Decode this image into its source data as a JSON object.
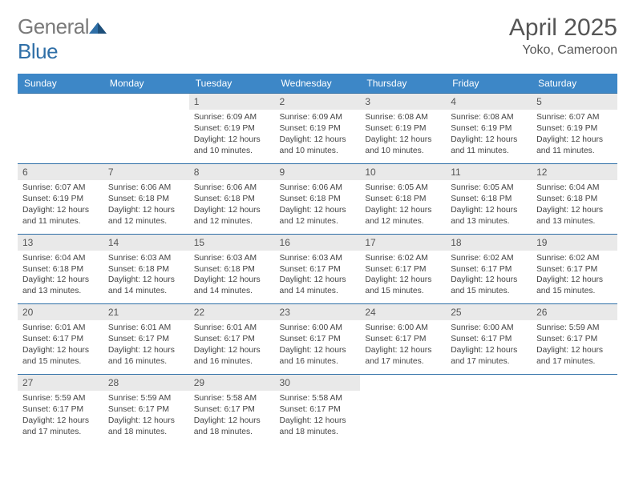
{
  "logo": {
    "text1": "General",
    "text2": "Blue"
  },
  "title": "April 2025",
  "location": "Yoko, Cameroon",
  "colors": {
    "header_bg": "#3d87c7",
    "header_text": "#ffffff",
    "daynum_bg": "#e9e9e9",
    "rule": "#2f6fa7",
    "logo_gray": "#7a7a7a",
    "logo_blue": "#2f6fa7"
  },
  "week_days": [
    "Sunday",
    "Monday",
    "Tuesday",
    "Wednesday",
    "Thursday",
    "Friday",
    "Saturday"
  ],
  "labels": {
    "sunrise": "Sunrise:",
    "sunset": "Sunset:",
    "daylight": "Daylight:"
  },
  "weeks": [
    [
      null,
      null,
      {
        "n": "1",
        "sr": "6:09 AM",
        "ss": "6:19 PM",
        "dl": "12 hours and 10 minutes."
      },
      {
        "n": "2",
        "sr": "6:09 AM",
        "ss": "6:19 PM",
        "dl": "12 hours and 10 minutes."
      },
      {
        "n": "3",
        "sr": "6:08 AM",
        "ss": "6:19 PM",
        "dl": "12 hours and 10 minutes."
      },
      {
        "n": "4",
        "sr": "6:08 AM",
        "ss": "6:19 PM",
        "dl": "12 hours and 11 minutes."
      },
      {
        "n": "5",
        "sr": "6:07 AM",
        "ss": "6:19 PM",
        "dl": "12 hours and 11 minutes."
      }
    ],
    [
      {
        "n": "6",
        "sr": "6:07 AM",
        "ss": "6:19 PM",
        "dl": "12 hours and 11 minutes."
      },
      {
        "n": "7",
        "sr": "6:06 AM",
        "ss": "6:18 PM",
        "dl": "12 hours and 12 minutes."
      },
      {
        "n": "8",
        "sr": "6:06 AM",
        "ss": "6:18 PM",
        "dl": "12 hours and 12 minutes."
      },
      {
        "n": "9",
        "sr": "6:06 AM",
        "ss": "6:18 PM",
        "dl": "12 hours and 12 minutes."
      },
      {
        "n": "10",
        "sr": "6:05 AM",
        "ss": "6:18 PM",
        "dl": "12 hours and 12 minutes."
      },
      {
        "n": "11",
        "sr": "6:05 AM",
        "ss": "6:18 PM",
        "dl": "12 hours and 13 minutes."
      },
      {
        "n": "12",
        "sr": "6:04 AM",
        "ss": "6:18 PM",
        "dl": "12 hours and 13 minutes."
      }
    ],
    [
      {
        "n": "13",
        "sr": "6:04 AM",
        "ss": "6:18 PM",
        "dl": "12 hours and 13 minutes."
      },
      {
        "n": "14",
        "sr": "6:03 AM",
        "ss": "6:18 PM",
        "dl": "12 hours and 14 minutes."
      },
      {
        "n": "15",
        "sr": "6:03 AM",
        "ss": "6:18 PM",
        "dl": "12 hours and 14 minutes."
      },
      {
        "n": "16",
        "sr": "6:03 AM",
        "ss": "6:17 PM",
        "dl": "12 hours and 14 minutes."
      },
      {
        "n": "17",
        "sr": "6:02 AM",
        "ss": "6:17 PM",
        "dl": "12 hours and 15 minutes."
      },
      {
        "n": "18",
        "sr": "6:02 AM",
        "ss": "6:17 PM",
        "dl": "12 hours and 15 minutes."
      },
      {
        "n": "19",
        "sr": "6:02 AM",
        "ss": "6:17 PM",
        "dl": "12 hours and 15 minutes."
      }
    ],
    [
      {
        "n": "20",
        "sr": "6:01 AM",
        "ss": "6:17 PM",
        "dl": "12 hours and 15 minutes."
      },
      {
        "n": "21",
        "sr": "6:01 AM",
        "ss": "6:17 PM",
        "dl": "12 hours and 16 minutes."
      },
      {
        "n": "22",
        "sr": "6:01 AM",
        "ss": "6:17 PM",
        "dl": "12 hours and 16 minutes."
      },
      {
        "n": "23",
        "sr": "6:00 AM",
        "ss": "6:17 PM",
        "dl": "12 hours and 16 minutes."
      },
      {
        "n": "24",
        "sr": "6:00 AM",
        "ss": "6:17 PM",
        "dl": "12 hours and 17 minutes."
      },
      {
        "n": "25",
        "sr": "6:00 AM",
        "ss": "6:17 PM",
        "dl": "12 hours and 17 minutes."
      },
      {
        "n": "26",
        "sr": "5:59 AM",
        "ss": "6:17 PM",
        "dl": "12 hours and 17 minutes."
      }
    ],
    [
      {
        "n": "27",
        "sr": "5:59 AM",
        "ss": "6:17 PM",
        "dl": "12 hours and 17 minutes."
      },
      {
        "n": "28",
        "sr": "5:59 AM",
        "ss": "6:17 PM",
        "dl": "12 hours and 18 minutes."
      },
      {
        "n": "29",
        "sr": "5:58 AM",
        "ss": "6:17 PM",
        "dl": "12 hours and 18 minutes."
      },
      {
        "n": "30",
        "sr": "5:58 AM",
        "ss": "6:17 PM",
        "dl": "12 hours and 18 minutes."
      },
      null,
      null,
      null
    ]
  ]
}
